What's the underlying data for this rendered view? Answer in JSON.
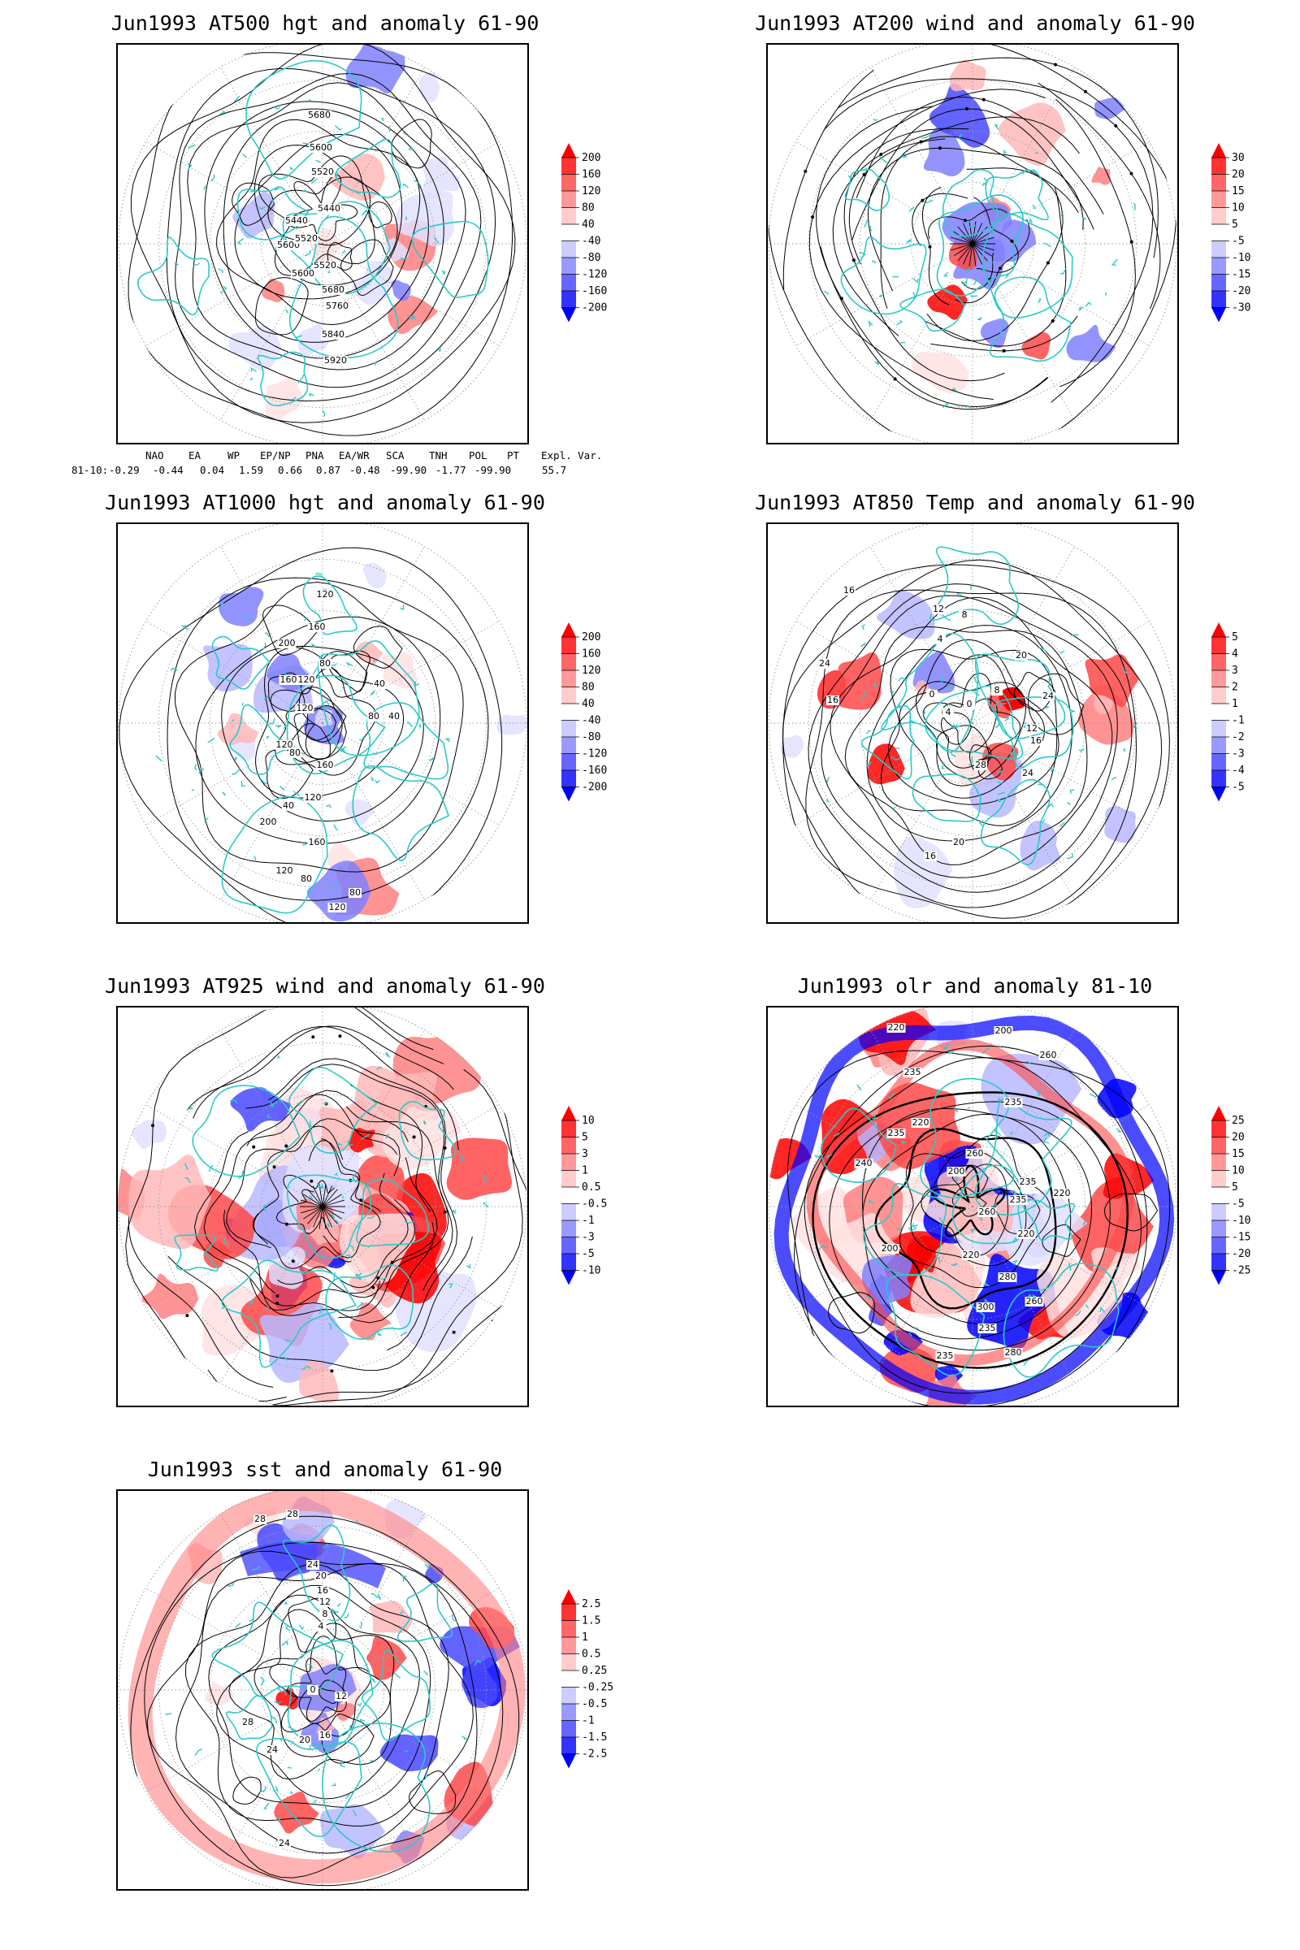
{
  "panels": [
    {
      "title": "Jun1993 AT500 hgt and anomaly 61-90",
      "contour_labels": [
        "5680",
        "5600",
        "5520",
        "5440",
        "5600",
        "5440",
        "5520",
        "5520",
        "5600",
        "5680",
        "5760",
        "5840",
        "5920"
      ],
      "colorbar": {
        "levels": [
          "200",
          "160",
          "120",
          "80",
          "40",
          "-40",
          "-80",
          "-120",
          "-160",
          "-200"
        ]
      }
    },
    {
      "title": "Jun1993 AT200 wind and anomaly 61-90",
      "contour_labels": [],
      "colorbar": {
        "levels": [
          "30",
          "20",
          "15",
          "10",
          "5",
          "-5",
          "-10",
          "-15",
          "-20",
          "-30"
        ]
      }
    },
    {
      "title": "Jun1993 AT1000 hgt and anomaly 61-90",
      "contour_labels": [
        "120",
        "160",
        "200",
        "160",
        "80",
        "120",
        "40",
        "120",
        "80",
        "40",
        "120",
        "80",
        "160",
        "120",
        "40",
        "200",
        "160",
        "120",
        "80",
        "80",
        "120",
        "120"
      ],
      "colorbar": {
        "levels": [
          "200",
          "160",
          "120",
          "80",
          "40",
          "-40",
          "-80",
          "-120",
          "-160",
          "-200"
        ]
      }
    },
    {
      "title": "Jun1993 AT850 Temp and anomaly 61-90",
      "contour_labels": [
        "16",
        "12",
        "24",
        "16",
        "8",
        "4",
        "0",
        "20",
        "24",
        "8",
        "4",
        "0",
        "12",
        "16",
        "28",
        "24",
        "20",
        "16"
      ],
      "colorbar": {
        "levels": [
          "5",
          "4",
          "3",
          "2",
          "1",
          "-1",
          "-2",
          "-3",
          "-4",
          "-5"
        ]
      }
    },
    {
      "title": "Jun1993 AT925 wind and anomaly 61-90",
      "contour_labels": [],
      "colorbar": {
        "levels": [
          "10",
          "5",
          "3",
          "1",
          "0.5",
          "-0.5",
          "-1",
          "-3",
          "-5",
          "-10"
        ]
      }
    },
    {
      "title": "Jun1993 olr and anomaly 81-10",
      "contour_labels": [
        "260",
        "235",
        "220",
        "200",
        "235",
        "260",
        "235",
        "220",
        "200",
        "235",
        "220",
        "260",
        "235",
        "240",
        "220",
        "280",
        "300",
        "235",
        "260",
        "200",
        "280",
        "235",
        "220"
      ],
      "colorbar": {
        "levels": [
          "25",
          "20",
          "15",
          "10",
          "5",
          "-5",
          "-10",
          "-15",
          "-20",
          "-25"
        ]
      }
    },
    {
      "title": "Jun1993 sst and anomaly 61-90",
      "contour_labels": [
        "28",
        "28",
        "24",
        "20",
        "16",
        "12",
        "8",
        "4",
        "0",
        "12",
        "16",
        "20",
        "24",
        "28",
        "24"
      ],
      "colorbar": {
        "levels": [
          "2.5",
          "1.5",
          "1",
          "0.5",
          "0.25",
          "-0.25",
          "-0.5",
          "-1",
          "-1.5",
          "-2.5"
        ]
      }
    }
  ],
  "teleconnection": {
    "headers": [
      "NAO",
      "EA",
      "WP",
      "EP/NP",
      "PNA",
      "EA/WR",
      "SCA",
      "TNH",
      "POL",
      "PT",
      "Expl. Var."
    ],
    "row_label": "81-10:",
    "values": [
      "-0.29",
      "-0.44",
      "0.04",
      "1.59",
      "0.66",
      "0.87",
      "-0.48",
      "-99.90",
      "-1.77",
      "-99.90",
      "55.7"
    ]
  },
  "colors": {
    "coastline": "#2bc9c9",
    "positive_max": "#ff0000",
    "negative_max": "#0000ff",
    "contour": "#000000",
    "grid": "#9a9a9a"
  }
}
